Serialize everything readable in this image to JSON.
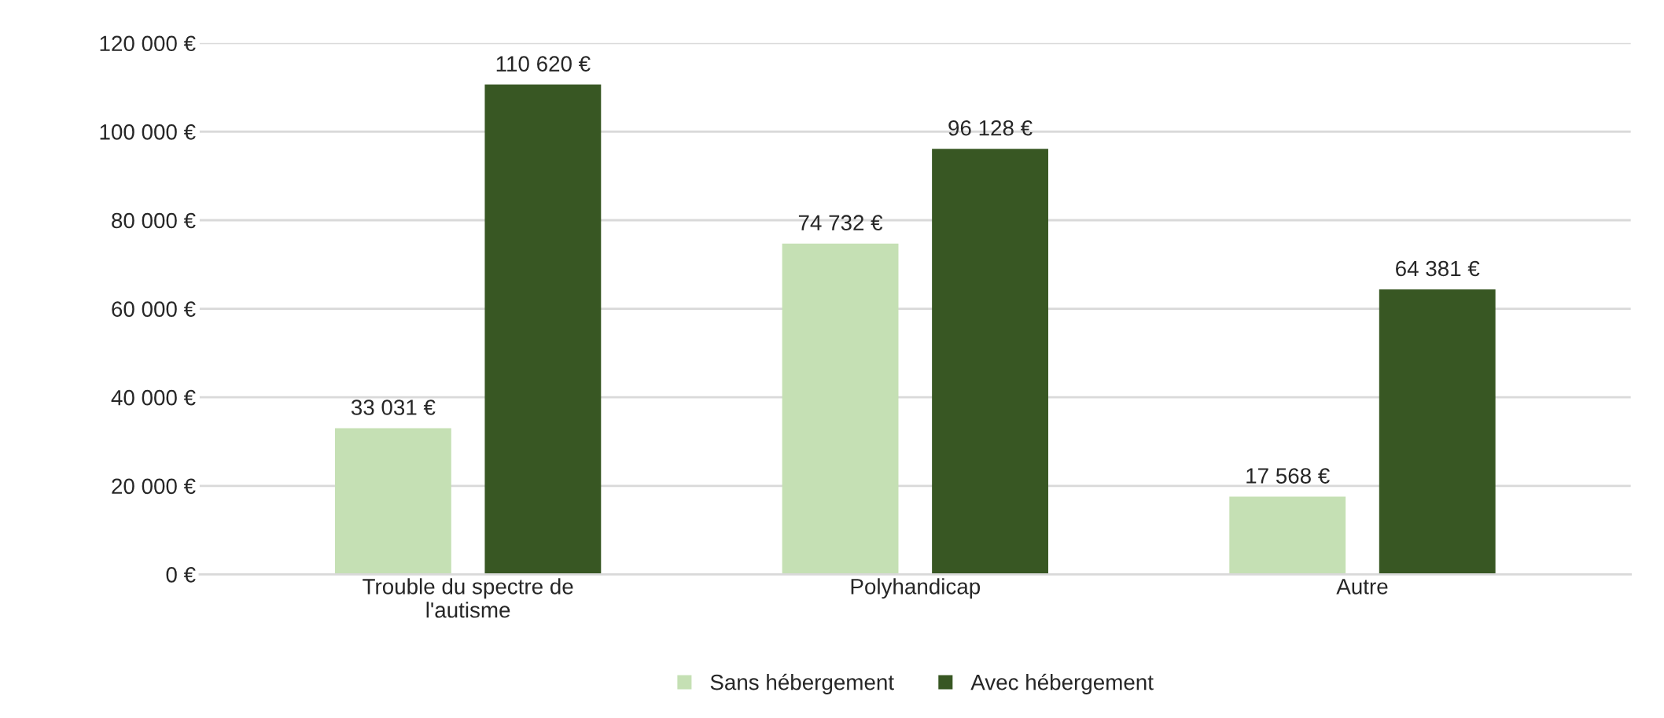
{
  "chart_data": {
    "type": "bar",
    "categories": [
      "Trouble du spectre de\nl'autisme",
      "Polyhandicap",
      "Autre"
    ],
    "series": [
      {
        "name": "Sans hébergement",
        "color": "#c5e0b4",
        "values": [
          33031,
          74732,
          17568
        ],
        "value_labels": [
          "33 031 €",
          "74 732 €",
          "17 568 €"
        ]
      },
      {
        "name": "Avec hébergement",
        "color": "#385723",
        "values": [
          110620,
          96128,
          64381
        ],
        "value_labels": [
          "110 620 €",
          "96 128 €",
          "64 381 €"
        ]
      }
    ],
    "ylim": [
      0,
      120000
    ],
    "yticks": [
      {
        "value": 0,
        "label": "0 €"
      },
      {
        "value": 20000,
        "label": "20 000 €"
      },
      {
        "value": 40000,
        "label": "40 000 €"
      },
      {
        "value": 60000,
        "label": "60 000 €"
      },
      {
        "value": 80000,
        "label": "80 000 €"
      },
      {
        "value": 100000,
        "label": "100 000 €"
      },
      {
        "value": 120000,
        "label": "120 000 €"
      }
    ],
    "grid": "y",
    "legend": "bottom"
  }
}
